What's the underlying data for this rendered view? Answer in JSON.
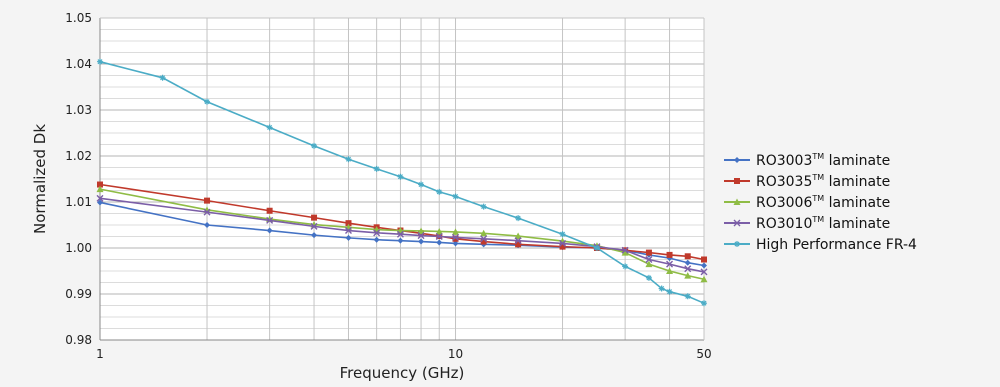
{
  "chart_data": {
    "type": "line",
    "xlabel": "Frequency (GHz)",
    "ylabel": "Normalized Dk",
    "xscale": "log",
    "xlim": [
      1,
      50
    ],
    "ylim": [
      0.98,
      1.05
    ],
    "x_tick_labels": [
      {
        "value": 1,
        "label": "1"
      },
      {
        "value": 10,
        "label": "10"
      },
      {
        "value": 50,
        "label": "50"
      }
    ],
    "y_tick_labels": [
      "0.98",
      "0.99",
      "1.00",
      "1.01",
      "1.02",
      "1.03",
      "1.04",
      "1.05"
    ],
    "y_ticks": [
      0.98,
      0.99,
      1.0,
      1.01,
      1.02,
      1.03,
      1.04,
      1.05
    ],
    "grid": true,
    "legend_position": "right",
    "series": [
      {
        "name": "RO3003",
        "legend_suffix": " laminate",
        "color": "#4472c4",
        "marker": "diamond",
        "x": [
          1,
          2,
          3,
          4,
          5,
          6,
          7,
          8,
          9,
          10,
          12,
          15,
          20,
          25,
          30,
          35,
          40,
          45,
          50
        ],
        "y": [
          1.0099,
          1.005,
          1.0038,
          1.0028,
          1.0022,
          1.0018,
          1.0016,
          1.0014,
          1.0012,
          1.001,
          1.0008,
          1.0006,
          1.0002,
          1.0,
          0.9995,
          0.9985,
          0.9978,
          0.9968,
          0.9962
        ]
      },
      {
        "name": "RO3035",
        "legend_suffix": " laminate",
        "color": "#c0392b",
        "marker": "square",
        "x": [
          1,
          2,
          3,
          4,
          5,
          6,
          7,
          8,
          9,
          10,
          12,
          15,
          20,
          25,
          30,
          35,
          40,
          45,
          50
        ],
        "y": [
          1.0138,
          1.0103,
          1.0081,
          1.0066,
          1.0054,
          1.0045,
          1.0038,
          1.0032,
          1.0026,
          1.002,
          1.0014,
          1.0008,
          1.0003,
          1.0,
          0.9995,
          0.999,
          0.9985,
          0.9982,
          0.9975
        ]
      },
      {
        "name": "RO3006",
        "legend_suffix": " laminate",
        "color": "#8fbc45",
        "marker": "triangle",
        "x": [
          1,
          2,
          3,
          4,
          5,
          6,
          7,
          8,
          9,
          10,
          12,
          15,
          20,
          25,
          30,
          35,
          40,
          45,
          50
        ],
        "y": [
          1.0128,
          1.0083,
          1.0063,
          1.0051,
          1.0045,
          1.004,
          1.0038,
          1.0037,
          1.0036,
          1.0035,
          1.0032,
          1.0026,
          1.0015,
          1.0005,
          0.999,
          0.9965,
          0.995,
          0.994,
          0.9932
        ]
      },
      {
        "name": "RO3010",
        "legend_suffix": " laminate",
        "color": "#7b5ea7",
        "marker": "cross",
        "x": [
          1,
          2,
          3,
          4,
          5,
          6,
          7,
          8,
          9,
          10,
          12,
          15,
          20,
          25,
          30,
          35,
          40,
          45,
          50
        ],
        "y": [
          1.0108,
          1.0078,
          1.006,
          1.0047,
          1.0038,
          1.0033,
          1.003,
          1.0027,
          1.0025,
          1.0023,
          1.002,
          1.0016,
          1.001,
          1.0003,
          0.9995,
          0.9975,
          0.9965,
          0.9955,
          0.9948
        ]
      },
      {
        "name": "High Performance FR-4",
        "legend_suffix": "",
        "color": "#4bacc6",
        "marker": "star",
        "x": [
          1,
          1.5,
          2,
          3,
          4,
          5,
          6,
          7,
          8,
          9,
          10,
          12,
          15,
          20,
          25,
          30,
          35,
          38,
          40,
          45,
          50
        ],
        "y": [
          1.0405,
          1.037,
          1.0318,
          1.0262,
          1.0222,
          1.0193,
          1.0172,
          1.0155,
          1.0138,
          1.0122,
          1.0112,
          1.009,
          1.0065,
          1.003,
          1.0,
          0.996,
          0.9935,
          0.9912,
          0.9905,
          0.9895,
          0.988
        ]
      }
    ]
  }
}
